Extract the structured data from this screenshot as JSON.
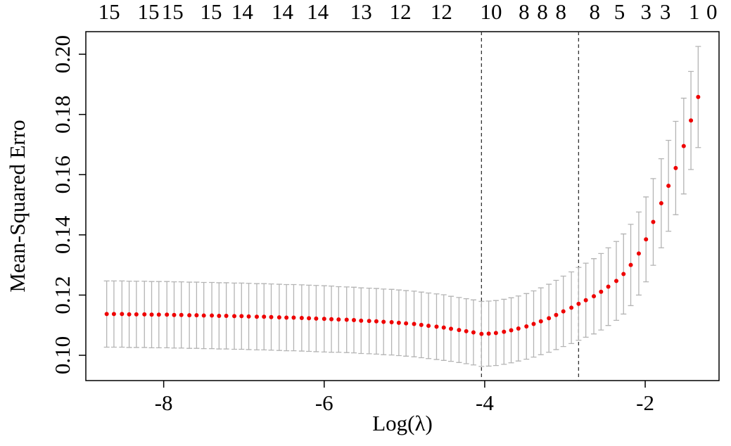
{
  "chart_data": {
    "type": "errorbar",
    "xlabel": "Log(λ)",
    "ylabel": "Mean-Squared Erro",
    "x": [
      -8.71,
      -8.62,
      -8.52,
      -8.43,
      -8.34,
      -8.24,
      -8.15,
      -8.06,
      -7.96,
      -7.87,
      -7.78,
      -7.68,
      -7.59,
      -7.5,
      -7.4,
      -7.31,
      -7.22,
      -7.12,
      -7.03,
      -6.94,
      -6.84,
      -6.75,
      -6.66,
      -6.56,
      -6.47,
      -6.38,
      -6.28,
      -6.19,
      -6.1,
      -6.0,
      -5.91,
      -5.82,
      -5.72,
      -5.63,
      -5.54,
      -5.44,
      -5.35,
      -5.26,
      -5.16,
      -5.07,
      -4.98,
      -4.88,
      -4.79,
      -4.7,
      -4.6,
      -4.51,
      -4.42,
      -4.32,
      -4.23,
      -4.14,
      -4.04,
      -3.95,
      -3.86,
      -3.76,
      -3.67,
      -3.58,
      -3.48,
      -3.39,
      -3.3,
      -3.2,
      -3.11,
      -3.02,
      -2.92,
      -2.83,
      -2.74,
      -2.64,
      -2.55,
      -2.46,
      -2.36,
      -2.27,
      -2.18,
      -2.08,
      -1.99,
      -1.9,
      -1.8,
      -1.71,
      -1.62,
      -1.52,
      -1.43,
      -1.34
    ],
    "series": [
      {
        "color": "#ee0000",
        "error_color": "#b4b4b4",
        "values": [
          0.1137,
          0.1137,
          0.1137,
          0.1136,
          0.1136,
          0.1136,
          0.1135,
          0.1135,
          0.1135,
          0.1134,
          0.1134,
          0.1133,
          0.1133,
          0.1132,
          0.1132,
          0.1131,
          0.1131,
          0.113,
          0.113,
          0.1129,
          0.1128,
          0.1128,
          0.1127,
          0.1126,
          0.1125,
          0.1125,
          0.1124,
          0.1123,
          0.1122,
          0.1121,
          0.112,
          0.1119,
          0.1118,
          0.1117,
          0.1115,
          0.1114,
          0.1113,
          0.1111,
          0.111,
          0.1108,
          0.1106,
          0.1104,
          0.1101,
          0.1098,
          0.1095,
          0.1092,
          0.1088,
          0.1084,
          0.108,
          0.1076,
          0.1071,
          0.1072,
          0.1074,
          0.1078,
          0.1083,
          0.1089,
          0.1096,
          0.1104,
          0.1113,
          0.1123,
          0.1134,
          0.1146,
          0.1158,
          0.1171,
          0.1183,
          0.1196,
          0.1211,
          0.1228,
          0.1247,
          0.127,
          0.13,
          0.1338,
          0.1385,
          0.1443,
          0.1505,
          0.1563,
          0.1622,
          0.1695,
          0.178,
          0.1858
        ],
        "errors": [
          0.011,
          0.011,
          0.011,
          0.011,
          0.011,
          0.011,
          0.011,
          0.011,
          0.011,
          0.011,
          0.011,
          0.011,
          0.011,
          0.011,
          0.011,
          0.011,
          0.011,
          0.011,
          0.011,
          0.011,
          0.011,
          0.011,
          0.011,
          0.011,
          0.011,
          0.011,
          0.011,
          0.011,
          0.011,
          0.011,
          0.011,
          0.0109,
          0.0109,
          0.0109,
          0.0109,
          0.0109,
          0.0109,
          0.0109,
          0.0109,
          0.0109,
          0.0109,
          0.0109,
          0.0109,
          0.0109,
          0.0109,
          0.0109,
          0.0108,
          0.0108,
          0.0108,
          0.0108,
          0.0108,
          0.0108,
          0.0108,
          0.0108,
          0.0108,
          0.0108,
          0.0109,
          0.011,
          0.0111,
          0.0113,
          0.0115,
          0.0117,
          0.0119,
          0.0121,
          0.0123,
          0.0125,
          0.0127,
          0.0129,
          0.0131,
          0.0133,
          0.0135,
          0.0138,
          0.0141,
          0.0144,
          0.0148,
          0.0151,
          0.0155,
          0.0159,
          0.0163,
          0.0168
        ]
      }
    ],
    "vlines": [
      -4.04,
      -2.83
    ],
    "xlim": [
      -8.97,
      -1.08
    ],
    "ylim": [
      0.0916,
      0.2075
    ],
    "xticks": [
      -8,
      -6,
      -4,
      -2
    ],
    "yticks": [
      {
        "value": 0.1,
        "label": "0.10"
      },
      0.12,
      0.14,
      0.16,
      0.18,
      {
        "value": 0.2,
        "label": "0.20"
      }
    ],
    "top_ticks": [
      {
        "value": -8.68,
        "label": "15"
      },
      {
        "value": -8.19,
        "label": "15"
      },
      {
        "value": -7.89,
        "label": "15"
      },
      {
        "value": -7.41,
        "label": "15"
      },
      {
        "value": -7.02,
        "label": "14"
      },
      {
        "value": -6.52,
        "label": "14"
      },
      {
        "value": -6.08,
        "label": "14"
      },
      {
        "value": -5.54,
        "label": "13"
      },
      {
        "value": -5.05,
        "label": "12"
      },
      {
        "value": -4.54,
        "label": "12"
      },
      {
        "value": -3.92,
        "label": "10"
      },
      {
        "value": -3.51,
        "label": "8"
      },
      {
        "value": -3.28,
        "label": "8"
      },
      {
        "value": -3.05,
        "label": "8"
      },
      {
        "value": -2.63,
        "label": "8"
      },
      {
        "value": -2.32,
        "label": "5"
      },
      {
        "value": -1.99,
        "label": "3"
      },
      {
        "value": -1.75,
        "label": "3"
      },
      {
        "value": -1.39,
        "label": "1"
      },
      {
        "value": -1.17,
        "label": "0"
      }
    ]
  }
}
